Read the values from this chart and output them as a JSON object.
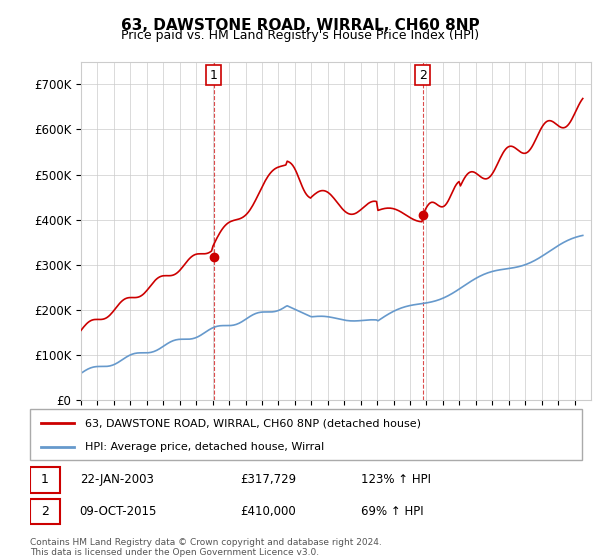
{
  "title": "63, DAWSTONE ROAD, WIRRAL, CH60 8NP",
  "subtitle": "Price paid vs. HM Land Registry's House Price Index (HPI)",
  "ylabel_ticks": [
    "£0",
    "£100K",
    "£200K",
    "£300K",
    "£400K",
    "£500K",
    "£600K",
    "£700K"
  ],
  "ytick_values": [
    0,
    100000,
    200000,
    300000,
    400000,
    500000,
    600000,
    700000
  ],
  "ylim": [
    0,
    750000
  ],
  "red_color": "#cc0000",
  "blue_color": "#6699cc",
  "sale1_date": 2003.06,
  "sale1_price": 317729,
  "sale1_text": "22-JAN-2003",
  "sale1_price_text": "£317,729",
  "sale1_hpi_text": "123% ↑ HPI",
  "sale2_date": 2015.77,
  "sale2_price": 410000,
  "sale2_text": "09-OCT-2015",
  "sale2_price_text": "£410,000",
  "sale2_hpi_text": "69% ↑ HPI",
  "legend_line1": "63, DAWSTONE ROAD, WIRRAL, CH60 8NP (detached house)",
  "legend_line2": "HPI: Average price, detached house, Wirral",
  "footer1": "Contains HM Land Registry data © Crown copyright and database right 2024.",
  "footer2": "This data is licensed under the Open Government Licence v3.0.",
  "xmin": 1995,
  "xmax": 2026
}
